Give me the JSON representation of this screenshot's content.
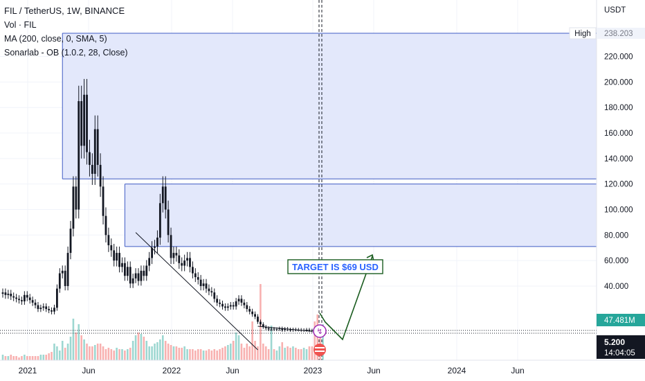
{
  "header": {
    "symbol_title": "FIL / TetherUS, 1W, BINANCE",
    "indicators": [
      "Vol · FIL",
      "MA (200, close, 0, SMA, 5)",
      "Sonarlab - OB (1.0.2, 28, Close)"
    ]
  },
  "price_scale": {
    "currency_label": "USDT",
    "high_label": "High",
    "high_value": "238.203",
    "volume_badge": "47.481M",
    "last_price": "5.200",
    "countdown": "14:04:05"
  },
  "annotation": {
    "target_text": "TARGET IS $69 USD"
  },
  "colors": {
    "up": "#26a69a",
    "down": "#ef5350",
    "ob_fill": "#e3e8fb",
    "ob_line": "#3f5bc4",
    "target": "#1a5c1f",
    "badge_green": "#26a69a",
    "badge_dark": "#131722",
    "grid": "#f0f3fa"
  },
  "chart_data": {
    "type": "candlestick",
    "y_ticks": [
      "220.000",
      "200.000",
      "180.000",
      "160.000",
      "140.000",
      "120.000",
      "100.000",
      "80.000",
      "60.000",
      "40.000"
    ],
    "y_tick_values": [
      220,
      200,
      180,
      160,
      140,
      120,
      100,
      80,
      60,
      40
    ],
    "x_ticks": [
      "2021",
      "Jun",
      "2022",
      "Jun",
      "2023",
      "Jun",
      "2024",
      "Jun"
    ],
    "ylim": [
      -10,
      248
    ],
    "order_blocks": [
      {
        "top": 238.2,
        "bottom": 124
      },
      {
        "top": 120,
        "bottom": 71
      }
    ],
    "target_price": 69,
    "high": 238.203,
    "last": 5.2,
    "closes": [
      35,
      33,
      34,
      32,
      31,
      30,
      29,
      28,
      33,
      31,
      29,
      27,
      25,
      22,
      23,
      24,
      22,
      21,
      20,
      23,
      38,
      50,
      52,
      40,
      66,
      85,
      118,
      100,
      185,
      150,
      190,
      145,
      135,
      128,
      163,
      135,
      118,
      95,
      80,
      72,
      68,
      60,
      66,
      55,
      58,
      48,
      55,
      42,
      46,
      50,
      44,
      52,
      48,
      56,
      62,
      70,
      71,
      78,
      105,
      118,
      100,
      80,
      62,
      66,
      64,
      58,
      56,
      60,
      62,
      55,
      50,
      47,
      45,
      40,
      42,
      38,
      36,
      35,
      30,
      27,
      26,
      24,
      23,
      24,
      25,
      24,
      28,
      30,
      27,
      25,
      22,
      20,
      18,
      16,
      12,
      10,
      8,
      7,
      6,
      6.5,
      6,
      6.2,
      6.8,
      5.5,
      6.5,
      6,
      5.5,
      6,
      5.8,
      5.7,
      5.4,
      5.5,
      5.8,
      5.2,
      5.0,
      4.8,
      4.6,
      4.3,
      5.2
    ],
    "volumes": [
      4,
      3,
      3,
      4,
      3,
      3,
      2,
      3,
      4,
      3,
      3,
      3,
      3,
      3,
      4,
      4,
      4,
      5,
      6,
      12,
      10,
      7,
      14,
      9,
      12,
      17,
      30,
      20,
      26,
      18,
      15,
      12,
      10,
      10,
      11,
      12,
      12,
      10,
      8,
      9,
      8,
      7,
      9,
      8,
      8,
      7,
      8,
      9,
      14,
      18,
      20,
      19,
      17,
      14,
      10,
      10,
      12,
      13,
      15,
      18,
      14,
      12,
      11,
      10,
      10,
      9,
      9,
      10,
      8,
      8,
      8,
      7,
      8,
      8,
      7,
      7,
      8,
      7,
      8,
      7,
      8,
      9,
      10,
      11,
      12,
      14,
      20,
      18,
      12,
      9,
      12,
      10,
      28,
      14,
      10,
      55,
      12,
      10,
      8,
      25,
      8,
      7,
      10,
      13,
      9,
      10,
      9,
      10,
      9,
      8,
      8,
      9,
      8,
      10,
      10,
      28,
      33,
      18,
      26
    ]
  }
}
